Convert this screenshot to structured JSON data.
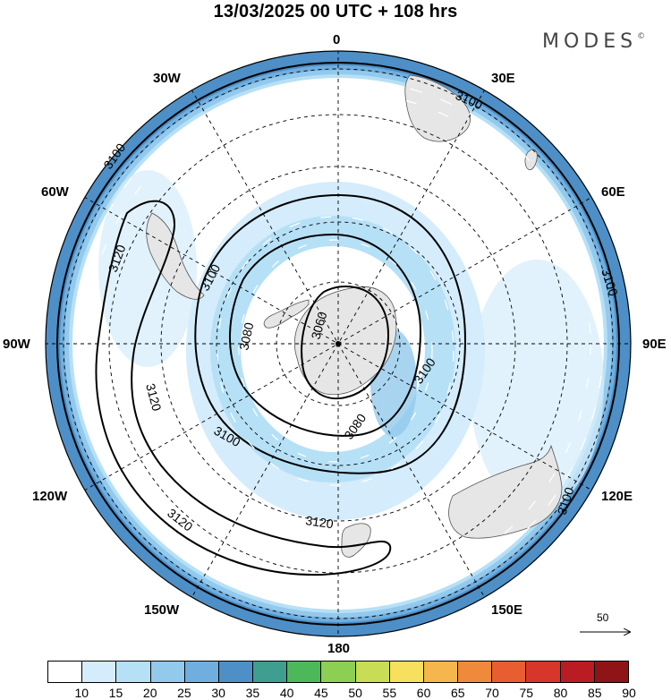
{
  "header": {
    "title": "13/03/2025  00 UTC  + 108 hrs",
    "brand": "MODES"
  },
  "longitude_labels": [
    "0",
    "30E",
    "60E",
    "90E",
    "120E",
    "150E",
    "180",
    "150W",
    "120W",
    "90W",
    "60W",
    "30W"
  ],
  "contour_labels": [
    "3060",
    "3080",
    "3100",
    "3120"
  ],
  "reference_vector": {
    "value": "50"
  },
  "colorbar": {
    "ticks": [
      "10",
      "15",
      "20",
      "25",
      "30",
      "35",
      "40",
      "45",
      "50",
      "55",
      "60",
      "65",
      "70",
      "75",
      "80",
      "85",
      "90"
    ],
    "colors": [
      "#ffffff",
      "#d4ecfb",
      "#b6e0f6",
      "#93c9ec",
      "#6faedf",
      "#4d8fc6",
      "#3f9e8f",
      "#4db85a",
      "#8ccf52",
      "#c9dc55",
      "#f6e05e",
      "#f4b64d",
      "#ef8a3c",
      "#e85d31",
      "#d9362b",
      "#b91c22",
      "#8f1418"
    ]
  },
  "colors": {
    "land": "#e6e6e6",
    "coastline": "#555555",
    "contour": "#000000",
    "graticule": "#000000",
    "vector": "#ffffff"
  }
}
